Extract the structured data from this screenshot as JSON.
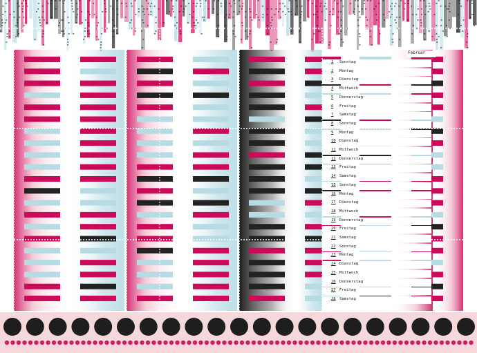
{
  "calendar": {
    "month": "Februar",
    "days": [
      {
        "num": "1",
        "name": "Sonntag"
      },
      {
        "num": "2",
        "name": "Montag"
      },
      {
        "num": "3",
        "name": "Dienstag"
      },
      {
        "num": "4",
        "name": "Mittwoch"
      },
      {
        "num": "5",
        "name": "Donnerstag"
      },
      {
        "num": "6",
        "name": "Freitag"
      },
      {
        "num": "7",
        "name": "Samstag"
      },
      {
        "num": "8",
        "name": "Sonntag"
      },
      {
        "num": "9",
        "name": "Montag"
      },
      {
        "num": "10",
        "name": "Dienstag"
      },
      {
        "num": "11",
        "name": "Mittwoch"
      },
      {
        "num": "12",
        "name": "Donnerstag"
      },
      {
        "num": "13",
        "name": "Freitag"
      },
      {
        "num": "14",
        "name": "Samstag"
      },
      {
        "num": "15",
        "name": "Sonntag"
      },
      {
        "num": "16",
        "name": "Montag"
      },
      {
        "num": "17",
        "name": "Dienstag"
      },
      {
        "num": "18",
        "name": "Mittwoch"
      },
      {
        "num": "19",
        "name": "Donnerstag"
      },
      {
        "num": "20",
        "name": "Freitag"
      },
      {
        "num": "21",
        "name": "Samstag"
      },
      {
        "num": "22",
        "name": "Sonntag"
      },
      {
        "num": "23",
        "name": "Montag"
      },
      {
        "num": "24",
        "name": "Dienstag"
      },
      {
        "num": "25",
        "name": "Mittwoch"
      },
      {
        "num": "26",
        "name": "Donnerstag"
      },
      {
        "num": "27",
        "name": "Freitag"
      },
      {
        "num": "28",
        "name": "Samstag"
      }
    ]
  },
  "colors": {
    "magenta": "#cc0a5a",
    "light_blue": "#b6dbe3",
    "black": "#222222",
    "pink_bg": "#f4d8dc"
  }
}
